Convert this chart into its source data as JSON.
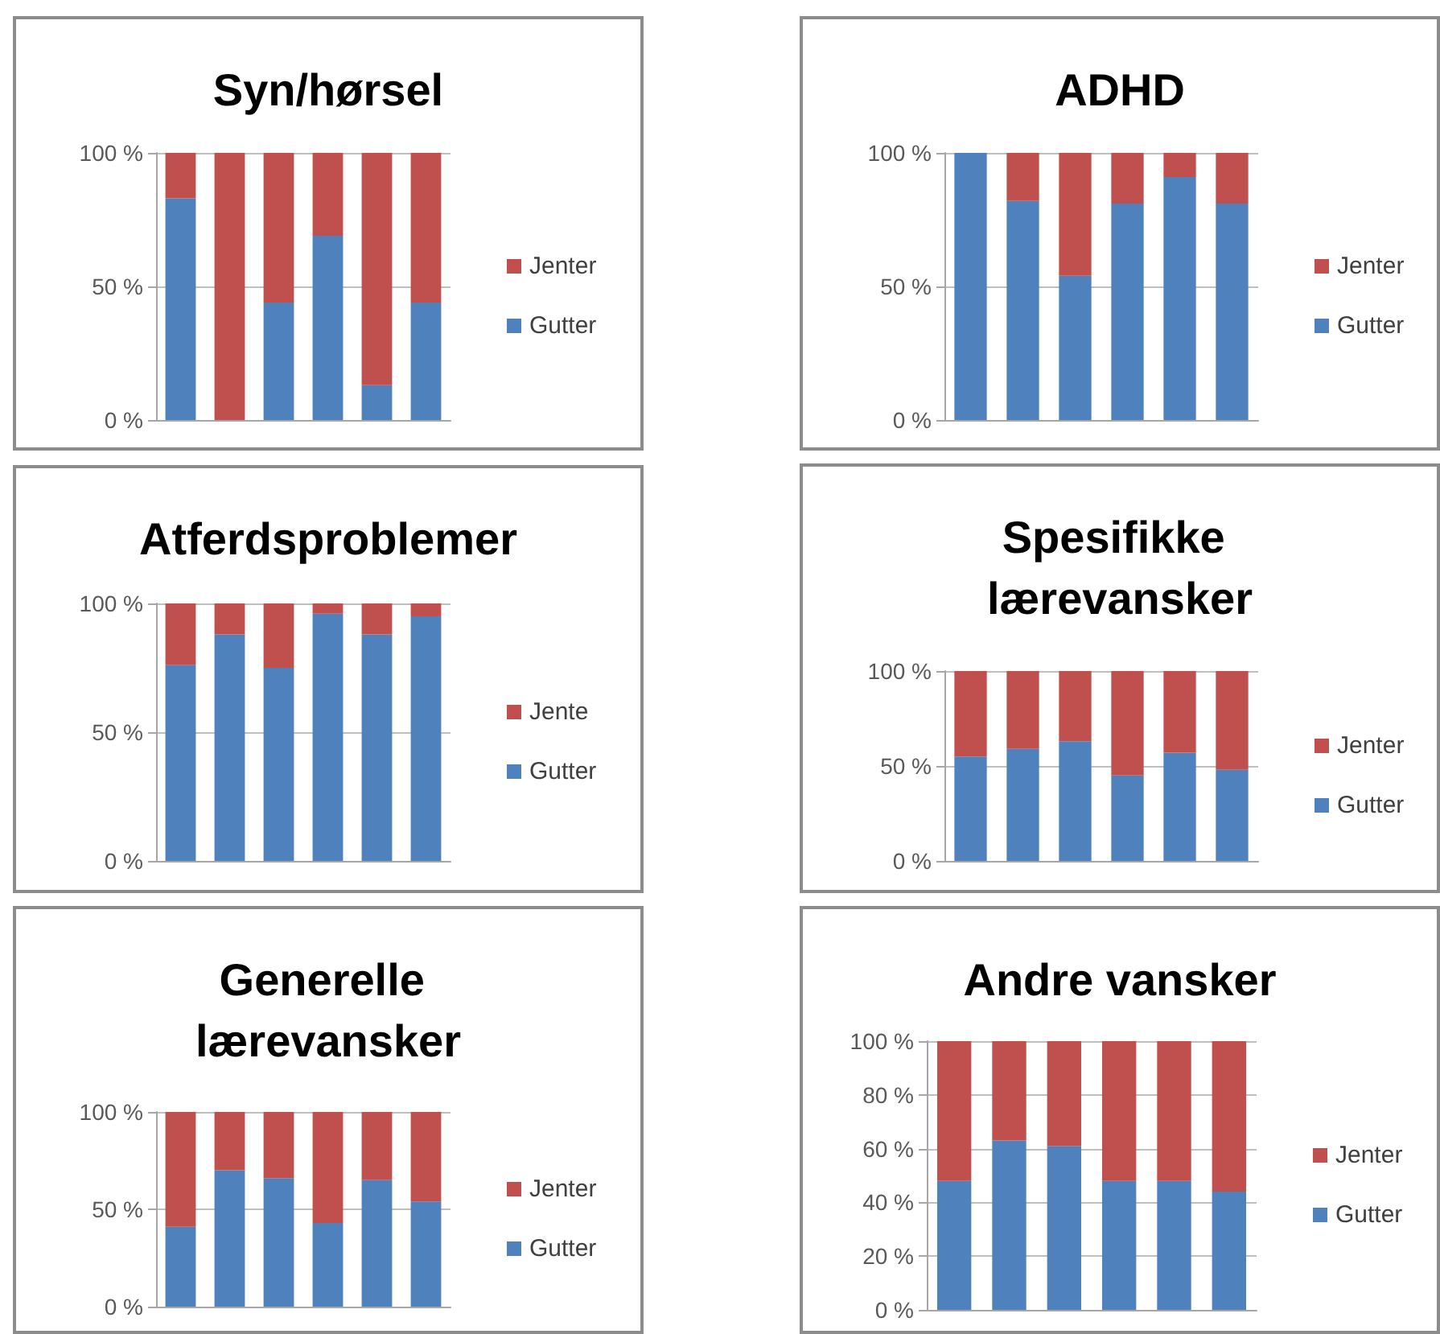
{
  "chart_data": [
    {
      "type": "bar",
      "title": "Syn/hørsel",
      "categories": [
        null,
        null,
        null,
        null,
        null,
        null
      ],
      "stacked": true,
      "series": [
        {
          "name": "Gutter",
          "color": "#4f81bd",
          "values": [
            83,
            0,
            44,
            69,
            13,
            44
          ]
        },
        {
          "name": "Jenter",
          "color": "#c0504d",
          "values": [
            17,
            100,
            56,
            31,
            87,
            56
          ]
        }
      ],
      "ylim": [
        0,
        100
      ],
      "yticks": [
        {
          "value": 0,
          "label": "0 %"
        },
        {
          "value": 50,
          "label": "50 %"
        },
        {
          "value": 100,
          "label": "100 %"
        }
      ],
      "grid": "y",
      "legend": "right",
      "tick_labels": "y"
    },
    {
      "type": "bar",
      "title": "ADHD",
      "categories": [
        null,
        null,
        null,
        null,
        null,
        null
      ],
      "stacked": true,
      "series": [
        {
          "name": "Gutter",
          "color": "#4f81bd",
          "values": [
            100,
            82,
            54,
            81,
            91,
            81
          ]
        },
        {
          "name": "Jenter",
          "color": "#c0504d",
          "values": [
            0,
            18,
            46,
            19,
            9,
            19
          ]
        }
      ],
      "ylim": [
        0,
        100
      ],
      "yticks": [
        {
          "value": 0,
          "label": "0 %"
        },
        {
          "value": 50,
          "label": "50 %"
        },
        {
          "value": 100,
          "label": "100 %"
        }
      ],
      "grid": "y",
      "legend": "right",
      "tick_labels": "y"
    },
    {
      "type": "bar",
      "title": "Atferdsproblemer",
      "categories": [
        null,
        null,
        null,
        null,
        null,
        null
      ],
      "stacked": true,
      "series": [
        {
          "name": "Gutter",
          "color": "#4f81bd",
          "values": [
            76,
            88,
            75,
            96,
            88,
            95
          ]
        },
        {
          "name": "Jente",
          "color": "#c0504d",
          "values": [
            24,
            12,
            25,
            4,
            12,
            5
          ]
        }
      ],
      "ylim": [
        0,
        100
      ],
      "yticks": [
        {
          "value": 0,
          "label": "0 %"
        },
        {
          "value": 50,
          "label": "50 %"
        },
        {
          "value": 100,
          "label": "100 %"
        }
      ],
      "grid": "y",
      "legend": "right",
      "tick_labels": "y"
    },
    {
      "type": "bar",
      "title": "Spesifikke lærevansker",
      "categories": [
        null,
        null,
        null,
        null,
        null,
        null
      ],
      "stacked": true,
      "series": [
        {
          "name": "Gutter",
          "color": "#4f81bd",
          "values": [
            55,
            59,
            63,
            45,
            57,
            48
          ]
        },
        {
          "name": "Jenter",
          "color": "#c0504d",
          "values": [
            45,
            41,
            37,
            55,
            43,
            52
          ]
        }
      ],
      "ylim": [
        0,
        100
      ],
      "yticks": [
        {
          "value": 0,
          "label": "0 %"
        },
        {
          "value": 50,
          "label": "50 %"
        },
        {
          "value": 100,
          "label": "100 %"
        }
      ],
      "grid": "y",
      "legend": "right",
      "tick_labels": "y"
    },
    {
      "type": "bar",
      "title": "Generelle lærevansker",
      "categories": [
        null,
        null,
        null,
        null,
        null,
        null
      ],
      "stacked": true,
      "series": [
        {
          "name": "Gutter",
          "color": "#4f81bd",
          "values": [
            41,
            70,
            66,
            43,
            65,
            54
          ]
        },
        {
          "name": "Jenter",
          "color": "#c0504d",
          "values": [
            59,
            30,
            34,
            57,
            35,
            46
          ]
        }
      ],
      "ylim": [
        0,
        100
      ],
      "yticks": [
        {
          "value": 0,
          "label": "0 %"
        },
        {
          "value": 50,
          "label": "50 %"
        },
        {
          "value": 100,
          "label": "100 %"
        }
      ],
      "grid": "y",
      "legend": "right",
      "tick_labels": "y"
    },
    {
      "type": "bar",
      "title": "Andre vansker",
      "categories": [
        null,
        null,
        null,
        null,
        null,
        null
      ],
      "stacked": true,
      "series": [
        {
          "name": "Gutter",
          "color": "#4f81bd",
          "values": [
            48,
            63,
            61,
            48,
            48,
            44
          ]
        },
        {
          "name": "Jenter",
          "color": "#c0504d",
          "values": [
            52,
            37,
            39,
            52,
            52,
            56
          ]
        }
      ],
      "ylim": [
        0,
        100
      ],
      "yticks": [
        {
          "value": 0,
          "label": "0 %"
        },
        {
          "value": 20,
          "label": "20 %"
        },
        {
          "value": 40,
          "label": "40 %"
        },
        {
          "value": 60,
          "label": "60 %"
        },
        {
          "value": 80,
          "label": "80 %"
        },
        {
          "value": 100,
          "label": "100 %"
        }
      ],
      "grid": "y",
      "legend": "right",
      "tick_labels": "y"
    }
  ]
}
